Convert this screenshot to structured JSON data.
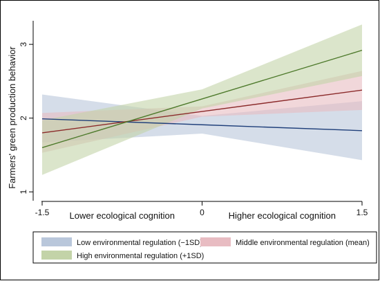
{
  "chart_data": {
    "type": "line",
    "title": "",
    "ylabel": "Farmers' green production behavior",
    "xlim": [
      -1.5,
      1.5
    ],
    "ylim": [
      0.88,
      3.32
    ],
    "x_ticks": [
      {
        "value": -1.5,
        "label": "-1.5"
      },
      {
        "value": 0,
        "label": "0"
      },
      {
        "value": 1.5,
        "label": "1.5"
      }
    ],
    "x_annotations": [
      {
        "value": -0.75,
        "label": "Lower ecological cognition"
      },
      {
        "value": 0.75,
        "label": "Higher ecological cognition"
      }
    ],
    "y_ticks": [
      {
        "value": 1,
        "label": "1"
      },
      {
        "value": 2,
        "label": "2"
      },
      {
        "value": 3,
        "label": "3"
      }
    ],
    "grid": false,
    "legend_position": "bottom",
    "series": [
      {
        "name": "Low environmental regulation (−1SD)",
        "line_color": "#1f3f7a",
        "band_color": "#b9c7db",
        "x": [
          -1.5,
          0,
          1.5
        ],
        "y": [
          1.99,
          1.91,
          1.83
        ],
        "ci_lower": [
          1.67,
          1.79,
          1.43
        ],
        "ci_upper": [
          2.32,
          2.03,
          2.23
        ]
      },
      {
        "name": "Middle environmental regulation (mean)",
        "line_color": "#8b2a2a",
        "band_color": "#e8bcc2",
        "x": [
          -1.5,
          0,
          1.5
        ],
        "y": [
          1.8,
          2.09,
          2.38
        ],
        "ci_lower": [
          1.53,
          2.02,
          2.11
        ],
        "ci_upper": [
          2.07,
          2.16,
          2.64
        ]
      },
      {
        "name": "High environmental regulation (+1SD)",
        "line_color": "#4e7a2c",
        "band_color": "#c3d3a8",
        "x": [
          -1.5,
          0,
          1.5
        ],
        "y": [
          1.6,
          2.26,
          2.92
        ],
        "ci_lower": [
          1.23,
          2.13,
          2.57
        ],
        "ci_upper": [
          1.97,
          2.39,
          3.27
        ]
      }
    ]
  }
}
